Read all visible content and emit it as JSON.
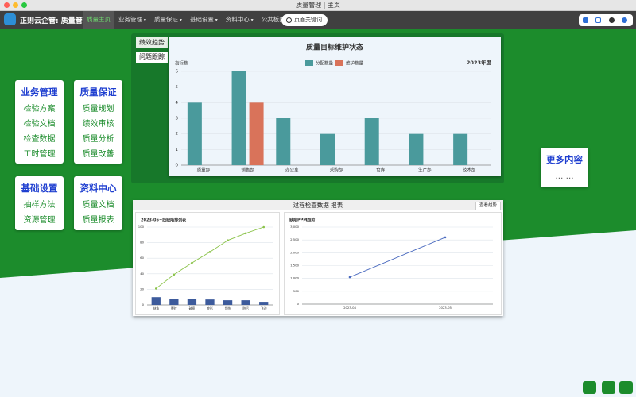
{
  "window_title": "质量管理 | 主页",
  "nav": {
    "brand": "正则云企管: 质量管理",
    "menu": [
      "质量主页",
      "业务管理",
      "质量保证",
      "基础设置",
      "资料中心",
      "公共板面"
    ],
    "search_placeholder": "页面关键词"
  },
  "menus": [
    {
      "title": "业务管理",
      "items": [
        "检验方案",
        "检验文档",
        "检查数据",
        "工时管理"
      ]
    },
    {
      "title": "质量保证",
      "items": [
        "质量规划",
        "绩效审核",
        "质量分析",
        "质量改善"
      ]
    },
    {
      "title": "基础设置",
      "items": [
        "抽样方法",
        "资源管理"
      ]
    },
    {
      "title": "资料中心",
      "items": [
        "质量文档",
        "质量报表"
      ]
    }
  ],
  "more": {
    "title": "更多内容",
    "text": "… …"
  },
  "tabs": [
    "绩效趋势",
    "问题跟踪"
  ],
  "report": {
    "title": "过程检查数据 报表",
    "button": "查看趋势"
  },
  "chart_data": [
    {
      "type": "bar",
      "title": "质量目标维护状态",
      "y_label": "指标数",
      "annotation": "2023年度",
      "categories": [
        "质量部",
        "销售部",
        "办公室",
        "采购部",
        "仓库",
        "生产部",
        "技术部"
      ],
      "series": [
        {
          "name": "分配数量",
          "color": "#4a9a9c",
          "values": [
            4,
            6,
            3,
            2,
            3,
            2,
            2
          ]
        },
        {
          "name": "维护数量",
          "color": "#d9735a",
          "values": [
            0,
            4,
            0,
            0,
            0,
            0,
            0
          ]
        }
      ],
      "ylim": [
        0,
        6
      ],
      "yticks": [
        0,
        1,
        2,
        3,
        4,
        5,
        6
      ],
      "grid": true
    },
    {
      "type": "bar",
      "title": "2023-05~线缺陷排列表",
      "categories": [
        "缺角",
        "裂纹",
        "破损",
        "变形",
        "划伤",
        "脏污",
        "飞边"
      ],
      "series": [
        {
          "color": "#3d5b9c",
          "values": [
            10,
            8,
            8,
            7,
            6,
            6,
            4
          ]
        },
        {
          "type": "line",
          "color": "#8bc34a",
          "values": [
            21,
            39,
            54,
            68,
            83,
            92,
            100
          ]
        }
      ],
      "ylim": [
        0,
        100
      ],
      "yticks": [
        0,
        20,
        40,
        60,
        80,
        100
      ],
      "grid": true
    },
    {
      "type": "line",
      "title": "缺陷PPM趋势",
      "categories": [
        "2023-04",
        "2023-05"
      ],
      "series": [
        {
          "color": "#4a6abf",
          "values": [
            1050,
            2600
          ]
        }
      ],
      "ylim": [
        0,
        3000
      ],
      "yticks": [
        0,
        500,
        {
          "value": 1000,
          "label": "1,000"
        },
        {
          "value": 1500,
          "label": "1,500"
        },
        {
          "value": 2000,
          "label": "2,000"
        },
        {
          "value": 2500,
          "label": "2,500"
        },
        {
          "value": 3000,
          "label": "3,000"
        }
      ],
      "grid": true
    }
  ]
}
